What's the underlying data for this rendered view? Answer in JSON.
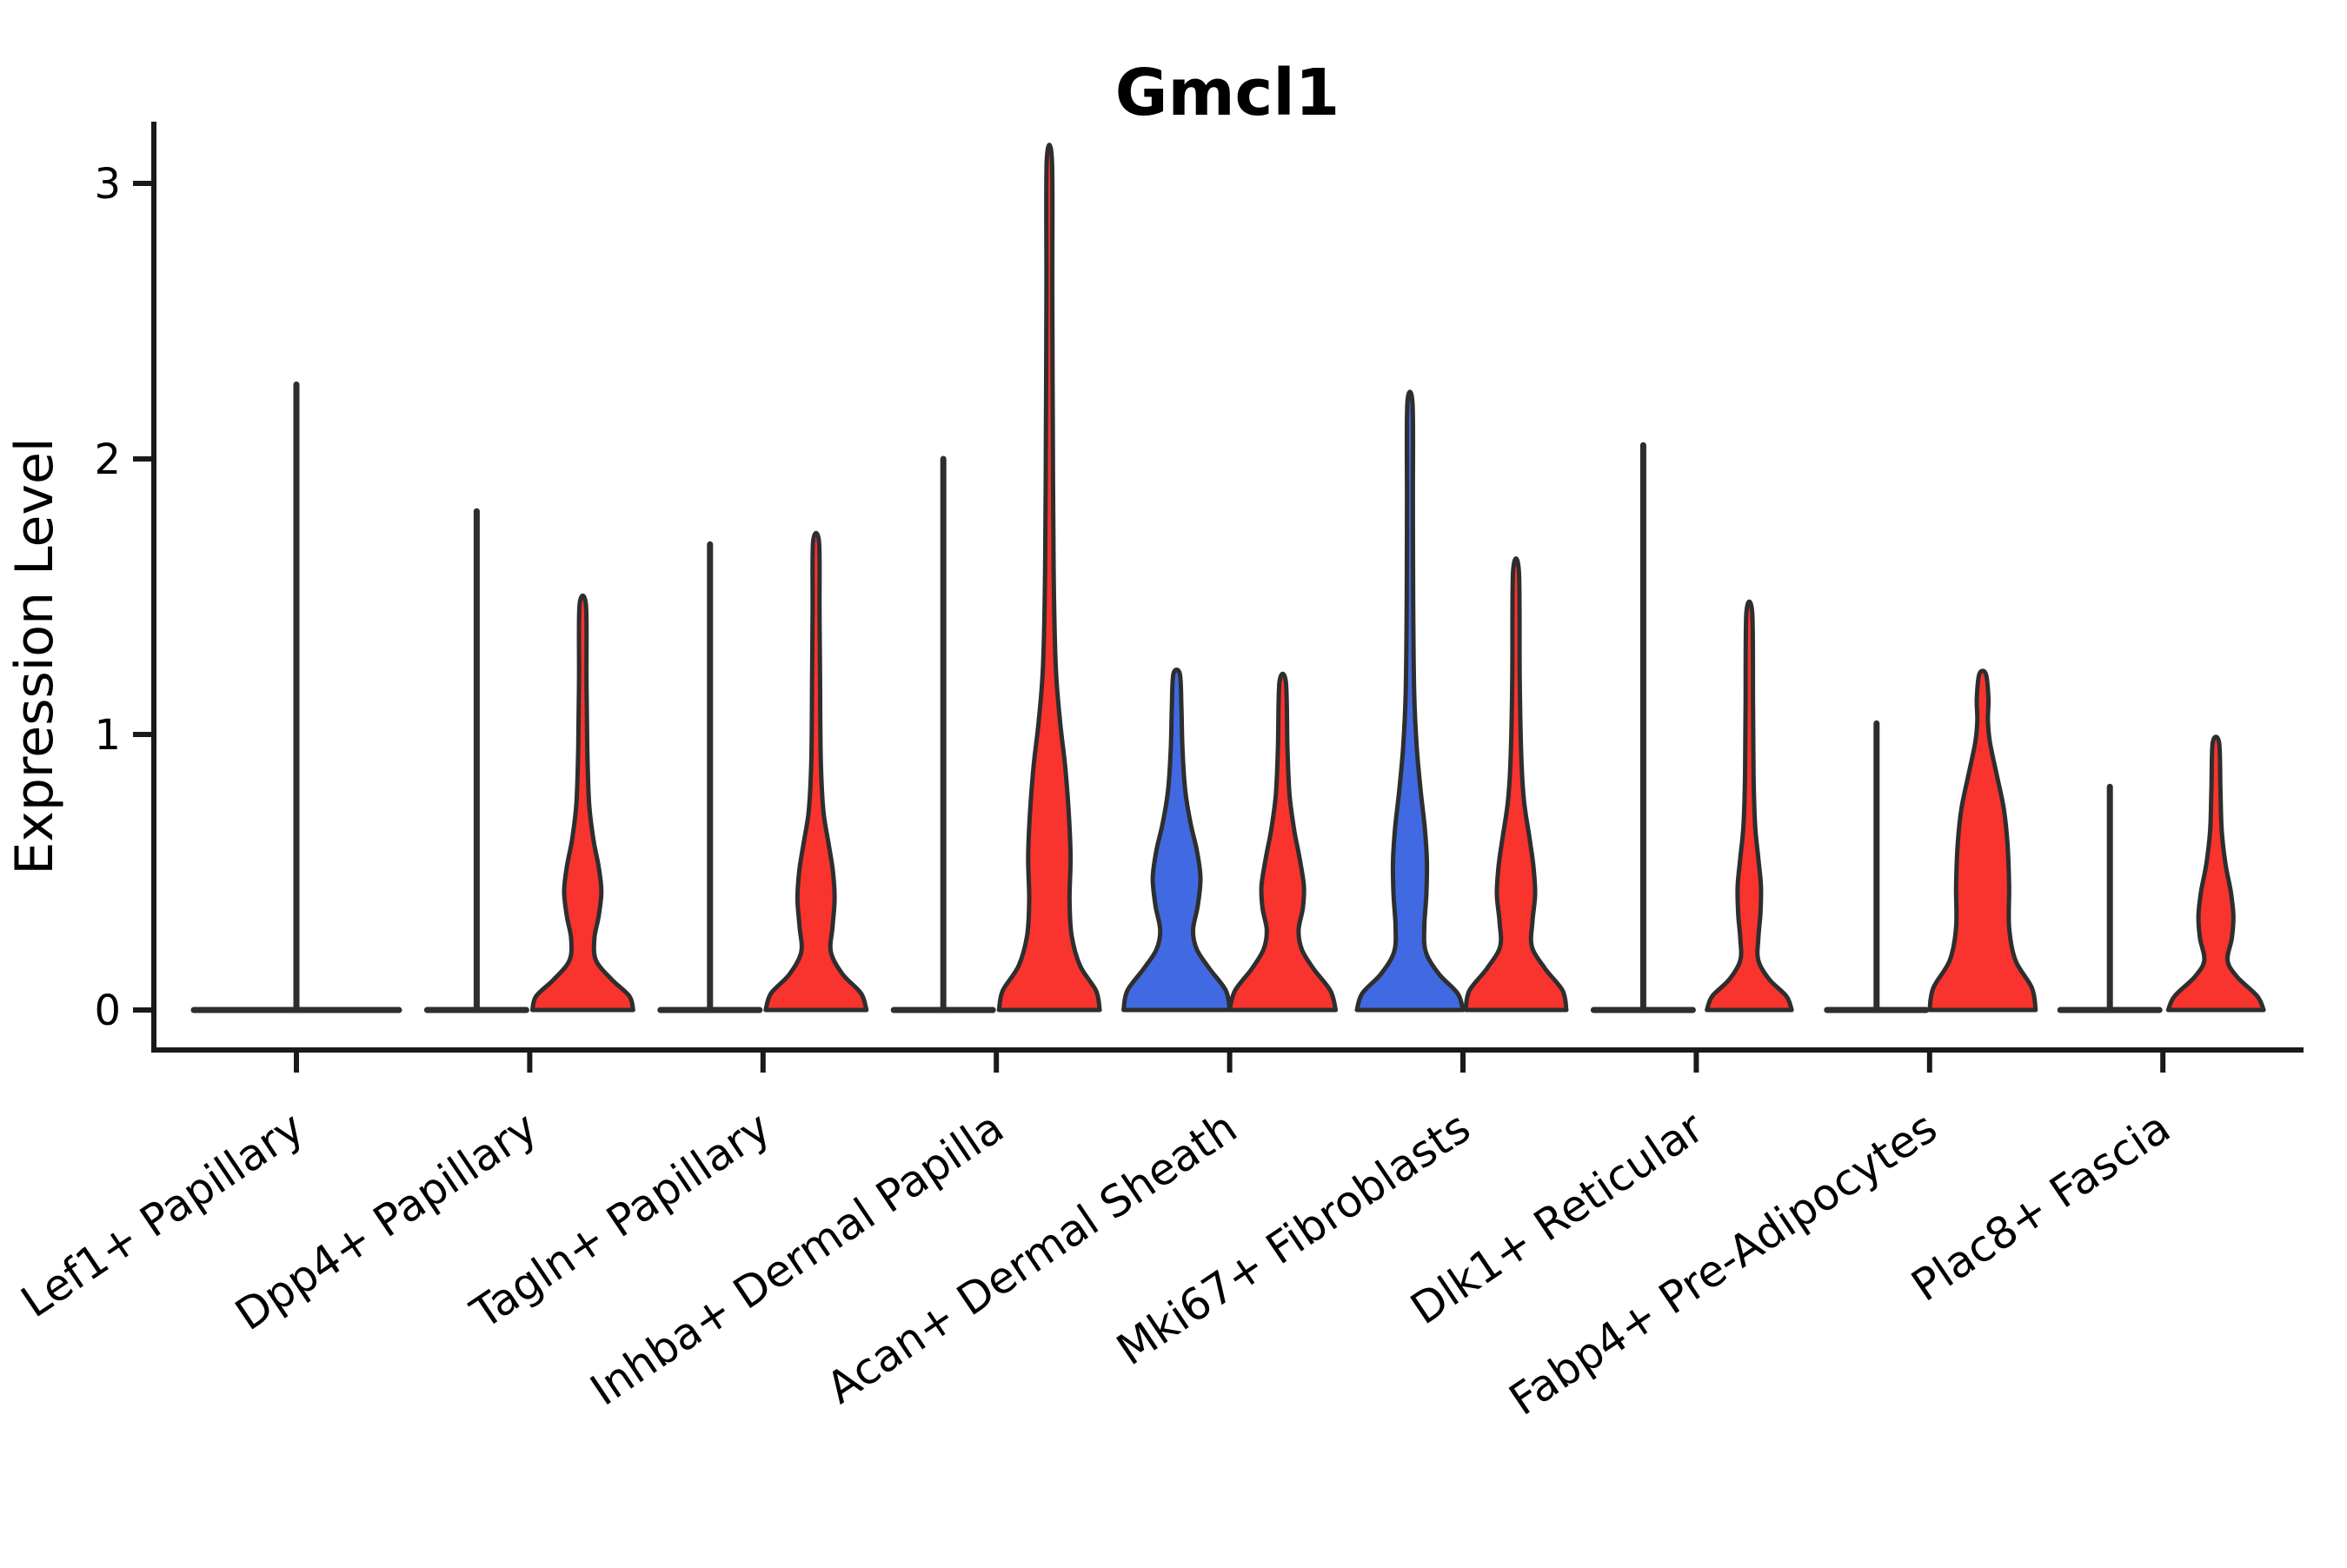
{
  "title": "Gmcl1",
  "chart_data": {
    "type": "violin",
    "title": "Gmcl1",
    "xlabel": "",
    "ylabel": "Expression Level",
    "ylim": [
      0,
      3.25
    ],
    "yticks": [
      0,
      1,
      2,
      3
    ],
    "grid": false,
    "legend_position": "none",
    "background_color": "#ffffff",
    "axis_color": "#1a1a1a",
    "outline_color": "#2e2e2e",
    "text_color": "#000000",
    "split_fill_colors": {
      "left_violin": "#4169E1",
      "right_violin": "#F9332D"
    },
    "categories": [
      "Lef1+ Papillary",
      "Dpp4+ Papillary",
      "Tagln+ Papillary",
      "Inhba+ Dermal Papilla",
      "Acan+ Dermal Sheath",
      "Mki67+ Fibroblasts",
      "Dlk1+ Reticular",
      "Fabp4+ Pre-Adipocytes",
      "Plac8+ Fascia"
    ],
    "groups": [
      {
        "category": "Lef1+ Papillary",
        "violins": [
          {
            "slot": "single",
            "fill": "#F9332D",
            "collapsed": true,
            "max": 2.27
          }
        ]
      },
      {
        "category": "Dpp4+ Papillary",
        "violins": [
          {
            "slot": "left",
            "fill": "#4169E1",
            "collapsed": true,
            "max": 1.81
          },
          {
            "slot": "right",
            "fill": "#F9332D",
            "collapsed": false,
            "max": 1.47,
            "profile": [
              [
                0,
                0.95
              ],
              [
                0.05,
                0.88
              ],
              [
                0.11,
                0.55
              ],
              [
                0.18,
                0.25
              ],
              [
                0.26,
                0.22
              ],
              [
                0.34,
                0.3
              ],
              [
                0.43,
                0.35
              ],
              [
                0.52,
                0.3
              ],
              [
                0.62,
                0.2
              ],
              [
                0.75,
                0.12
              ],
              [
                0.95,
                0.085
              ],
              [
                1.2,
                0.07
              ],
              [
                1.47,
                0.06
              ]
            ]
          }
        ]
      },
      {
        "category": "Tagln+ Papillary",
        "violins": [
          {
            "slot": "left",
            "fill": "#4169E1",
            "collapsed": true,
            "max": 1.69
          },
          {
            "slot": "right",
            "fill": "#F9332D",
            "collapsed": false,
            "max": 1.7,
            "profile": [
              [
                0,
                0.95
              ],
              [
                0.06,
                0.85
              ],
              [
                0.13,
                0.5
              ],
              [
                0.21,
                0.28
              ],
              [
                0.3,
                0.31
              ],
              [
                0.4,
                0.35
              ],
              [
                0.5,
                0.32
              ],
              [
                0.6,
                0.24
              ],
              [
                0.72,
                0.14
              ],
              [
                0.9,
                0.09
              ],
              [
                1.2,
                0.075
              ],
              [
                1.45,
                0.065
              ],
              [
                1.7,
                0.055
              ]
            ]
          }
        ]
      },
      {
        "category": "Inhba+ Dermal Papilla",
        "violins": [
          {
            "slot": "left",
            "fill": "#4169E1",
            "collapsed": true,
            "max": 2.0
          },
          {
            "slot": "right",
            "fill": "#F9332D",
            "collapsed": false,
            "max": 3.08,
            "profile": [
              [
                0,
                0.95
              ],
              [
                0.07,
                0.88
              ],
              [
                0.16,
                0.58
              ],
              [
                0.27,
                0.42
              ],
              [
                0.4,
                0.38
              ],
              [
                0.55,
                0.4
              ],
              [
                0.7,
                0.37
              ],
              [
                0.88,
                0.3
              ],
              [
                1.05,
                0.2
              ],
              [
                1.25,
                0.12
              ],
              [
                1.6,
                0.08
              ],
              [
                2.1,
                0.065
              ],
              [
                2.6,
                0.055
              ],
              [
                3.08,
                0.05
              ]
            ]
          }
        ]
      },
      {
        "category": "Acan+ Dermal Sheath",
        "violins": [
          {
            "slot": "left",
            "fill": "#4169E1",
            "collapsed": false,
            "max": 1.22,
            "profile": [
              [
                0,
                1.0
              ],
              [
                0.07,
                0.93
              ],
              [
                0.15,
                0.62
              ],
              [
                0.22,
                0.38
              ],
              [
                0.29,
                0.31
              ],
              [
                0.38,
                0.4
              ],
              [
                0.48,
                0.45
              ],
              [
                0.58,
                0.38
              ],
              [
                0.68,
                0.26
              ],
              [
                0.8,
                0.16
              ],
              [
                0.95,
                0.11
              ],
              [
                1.1,
                0.09
              ],
              [
                1.22,
                0.06
              ]
            ]
          },
          {
            "slot": "right",
            "fill": "#F9332D",
            "collapsed": false,
            "max": 1.19,
            "profile": [
              [
                0,
                1.0
              ],
              [
                0.07,
                0.9
              ],
              [
                0.15,
                0.58
              ],
              [
                0.22,
                0.36
              ],
              [
                0.29,
                0.3
              ],
              [
                0.37,
                0.38
              ],
              [
                0.45,
                0.4
              ],
              [
                0.55,
                0.32
              ],
              [
                0.65,
                0.22
              ],
              [
                0.78,
                0.13
              ],
              [
                0.95,
                0.09
              ],
              [
                1.19,
                0.06
              ]
            ]
          }
        ]
      },
      {
        "category": "Mki67+ Fibroblasts",
        "violins": [
          {
            "slot": "left",
            "fill": "#4169E1",
            "collapsed": false,
            "max": 2.2,
            "profile": [
              [
                0,
                1.0
              ],
              [
                0.06,
                0.9
              ],
              [
                0.13,
                0.55
              ],
              [
                0.21,
                0.3
              ],
              [
                0.3,
                0.27
              ],
              [
                0.42,
                0.31
              ],
              [
                0.54,
                0.32
              ],
              [
                0.66,
                0.28
              ],
              [
                0.8,
                0.2
              ],
              [
                0.95,
                0.13
              ],
              [
                1.15,
                0.08
              ],
              [
                1.5,
                0.06
              ],
              [
                1.85,
                0.055
              ],
              [
                2.2,
                0.05
              ]
            ]
          },
          {
            "slot": "right",
            "fill": "#F9332D",
            "collapsed": false,
            "max": 1.59,
            "profile": [
              [
                0,
                0.95
              ],
              [
                0.07,
                0.88
              ],
              [
                0.15,
                0.55
              ],
              [
                0.23,
                0.3
              ],
              [
                0.32,
                0.31
              ],
              [
                0.42,
                0.36
              ],
              [
                0.52,
                0.33
              ],
              [
                0.63,
                0.25
              ],
              [
                0.76,
                0.15
              ],
              [
                0.92,
                0.1
              ],
              [
                1.2,
                0.07
              ],
              [
                1.59,
                0.055
              ]
            ]
          }
        ]
      },
      {
        "category": "Dlk1+ Reticular",
        "violins": [
          {
            "slot": "left",
            "fill": "#4169E1",
            "collapsed": true,
            "max": 2.05
          },
          {
            "slot": "right",
            "fill": "#F9332D",
            "collapsed": false,
            "max": 1.44,
            "profile": [
              [
                0,
                0.8
              ],
              [
                0.05,
                0.7
              ],
              [
                0.11,
                0.38
              ],
              [
                0.18,
                0.17
              ],
              [
                0.26,
                0.17
              ],
              [
                0.35,
                0.21
              ],
              [
                0.45,
                0.22
              ],
              [
                0.55,
                0.17
              ],
              [
                0.67,
                0.11
              ],
              [
                0.85,
                0.08
              ],
              [
                1.1,
                0.07
              ],
              [
                1.44,
                0.055
              ]
            ]
          }
        ]
      },
      {
        "category": "Fabp4+ Pre-Adipocytes",
        "violins": [
          {
            "slot": "left",
            "fill": "#4169E1",
            "collapsed": true,
            "max": 1.04
          },
          {
            "slot": "right",
            "fill": "#F9332D",
            "collapsed": false,
            "max": 1.22,
            "profile": [
              [
                0,
                1.0
              ],
              [
                0.08,
                0.93
              ],
              [
                0.18,
                0.62
              ],
              [
                0.3,
                0.5
              ],
              [
                0.45,
                0.5
              ],
              [
                0.6,
                0.47
              ],
              [
                0.73,
                0.4
              ],
              [
                0.85,
                0.27
              ],
              [
                0.97,
                0.14
              ],
              [
                1.05,
                0.1
              ],
              [
                1.13,
                0.11
              ],
              [
                1.22,
                0.06
              ]
            ]
          }
        ]
      },
      {
        "category": "Plac8+ Fascia",
        "violins": [
          {
            "slot": "left",
            "fill": "#4169E1",
            "collapsed": true,
            "max": 0.81
          },
          {
            "slot": "right",
            "fill": "#F9332D",
            "collapsed": false,
            "max": 0.97,
            "profile": [
              [
                0,
                0.9
              ],
              [
                0.05,
                0.78
              ],
              [
                0.12,
                0.4
              ],
              [
                0.18,
                0.22
              ],
              [
                0.26,
                0.3
              ],
              [
                0.34,
                0.33
              ],
              [
                0.43,
                0.28
              ],
              [
                0.53,
                0.18
              ],
              [
                0.65,
                0.11
              ],
              [
                0.8,
                0.085
              ],
              [
                0.97,
                0.06
              ]
            ]
          }
        ]
      }
    ]
  }
}
